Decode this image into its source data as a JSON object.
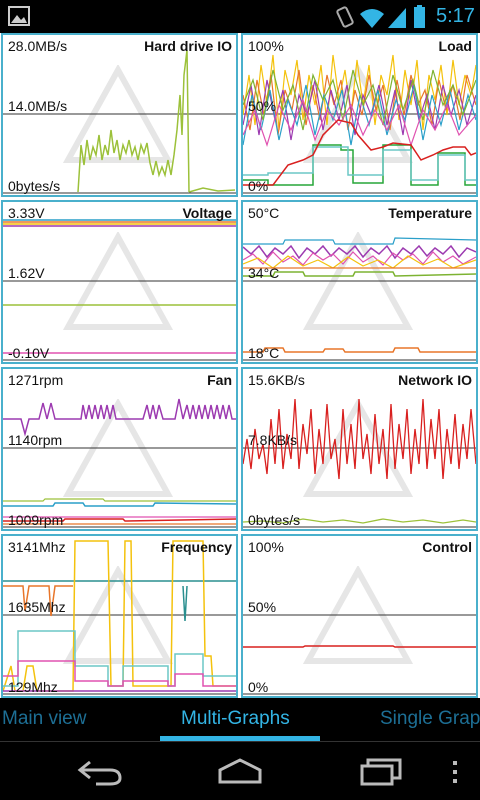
{
  "status_bar": {
    "time": "5:17"
  },
  "graphs": [
    {
      "title": "Hard drive IO",
      "labels": [
        "28.0MB/s",
        "14.0MB/s",
        "0bytes/s"
      ]
    },
    {
      "title": "Load",
      "labels": [
        "100%",
        "50%",
        "0%"
      ]
    },
    {
      "title": "Voltage",
      "labels": [
        "3.33V",
        "1.62V",
        "-0.10V"
      ]
    },
    {
      "title": "Temperature",
      "labels": [
        "50°C",
        "34°C",
        "18°C"
      ]
    },
    {
      "title": "Fan",
      "labels": [
        "1271rpm",
        "1140rpm",
        "1009rpm"
      ]
    },
    {
      "title": "Network IO",
      "labels": [
        "15.6KB/s",
        "7.8KB/s",
        "0bytes/s"
      ]
    },
    {
      "title": "Frequency",
      "labels": [
        "3141Mhz",
        "1635Mhz",
        "129Mhz"
      ]
    },
    {
      "title": "Control",
      "labels": [
        "100%",
        "50%",
        "0%"
      ]
    }
  ],
  "tabs": {
    "main_view": "Main view",
    "multi_graphs": "Multi-Graphs",
    "single_graph": "Single Grap"
  },
  "colors": {
    "accent": "#33b5e5",
    "frame": "#4ab0cc",
    "background": "#ffffff"
  },
  "icons": [
    "picture-icon",
    "vibrate-icon",
    "wifi-icon",
    "signal-icon",
    "battery-icon",
    "back-icon",
    "home-icon",
    "recent-apps-icon",
    "overflow-menu-icon"
  ]
}
